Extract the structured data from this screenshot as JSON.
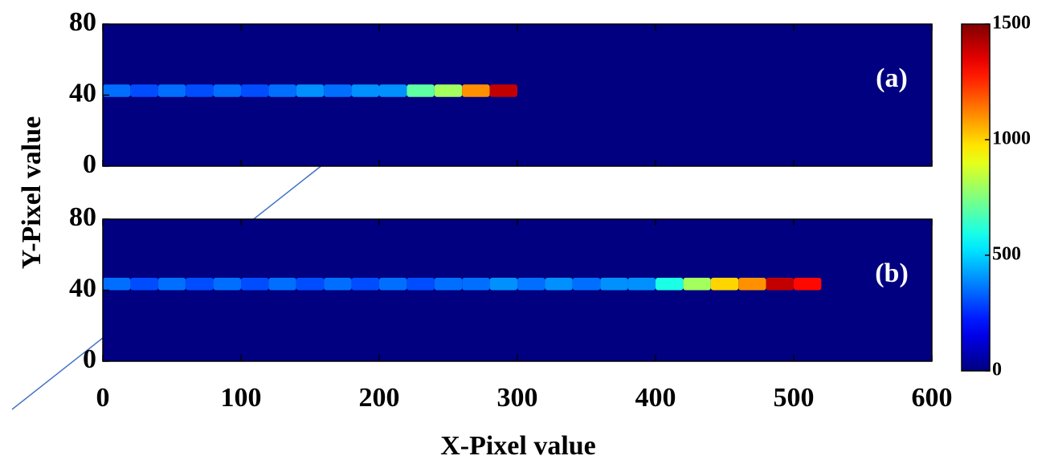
{
  "figure": {
    "x_label": "X-Pixel value",
    "y_label": "Y-Pixel value",
    "colorbar": {
      "clim": [
        0,
        1500
      ],
      "cticks": [
        0,
        500,
        1000,
        1500
      ]
    }
  },
  "chart_data": [
    {
      "type": "heatmap",
      "label": "(a)",
      "xlim": [
        0,
        600
      ],
      "ylim": [
        0,
        80
      ],
      "xticks": [
        0,
        100,
        200,
        300,
        400,
        500,
        600
      ],
      "yticks": [
        0,
        40,
        80
      ],
      "xbins": [
        0,
        20,
        40,
        60,
        80,
        100,
        120,
        140,
        160,
        180,
        200,
        220,
        240,
        260,
        280,
        300
      ],
      "ybins": [
        39,
        46
      ],
      "values": [
        350,
        300,
        350,
        300,
        350,
        300,
        350,
        400,
        350,
        400,
        400,
        700,
        800,
        1100,
        1400
      ]
    },
    {
      "type": "heatmap",
      "label": "(b)",
      "xlim": [
        0,
        600
      ],
      "ylim": [
        0,
        80
      ],
      "xticks": [
        0,
        100,
        200,
        300,
        400,
        500,
        600
      ],
      "yticks": [
        0,
        40,
        80
      ],
      "xbins": [
        0,
        20,
        40,
        60,
        80,
        100,
        120,
        140,
        160,
        180,
        200,
        220,
        240,
        260,
        280,
        300,
        320,
        340,
        360,
        380,
        400,
        420,
        440,
        460,
        480,
        500,
        520
      ],
      "ybins": [
        40,
        47
      ],
      "values": [
        350,
        300,
        350,
        300,
        350,
        300,
        350,
        300,
        350,
        300,
        350,
        300,
        350,
        350,
        400,
        350,
        400,
        350,
        400,
        400,
        600,
        800,
        1000,
        1100,
        1400,
        1300
      ]
    }
  ]
}
